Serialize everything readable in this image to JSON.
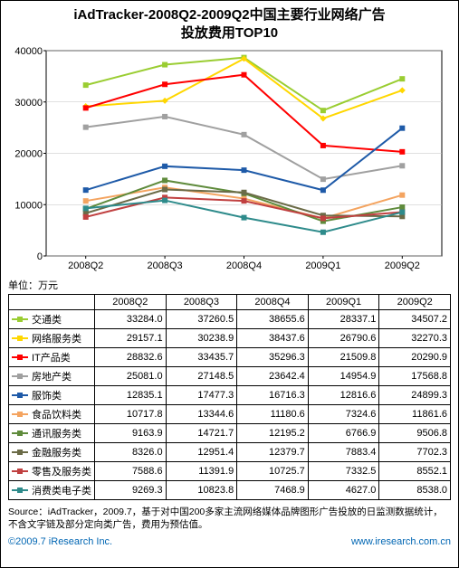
{
  "title_line1": "iAdTracker-2008Q2-2009Q2中国主要行业网络广告",
  "title_line2": "投放费用TOP10",
  "unit_label": "单位：万元",
  "chart": {
    "type": "line",
    "categories": [
      "2008Q2",
      "2008Q3",
      "2008Q4",
      "2009Q1",
      "2009Q2"
    ],
    "ylim": [
      0,
      40000
    ],
    "ytick_step": 10000,
    "background_color": "#ffffff",
    "grid_color": "#c0c0c0",
    "axis_color": "#000000",
    "label_fontsize": 11,
    "series": [
      {
        "name": "交通类",
        "color": "#9acd32",
        "marker": "rect",
        "values": [
          33284.0,
          37260.5,
          38655.6,
          28337.1,
          34507.2
        ]
      },
      {
        "name": "网络服务类",
        "color": "#ffd700",
        "marker": "diamond",
        "values": [
          29157.1,
          30238.9,
          38437.6,
          26790.6,
          32270.3
        ]
      },
      {
        "name": "IT产品类",
        "color": "#ff0000",
        "marker": "rect",
        "values": [
          28832.6,
          33435.7,
          35296.3,
          21509.8,
          20290.9
        ]
      },
      {
        "name": "房地产类",
        "color": "#a0a0a0",
        "marker": "rect",
        "values": [
          25081.0,
          27148.5,
          23642.4,
          14954.9,
          17568.8
        ]
      },
      {
        "name": "服饰类",
        "color": "#1e5aa8",
        "marker": "rect",
        "values": [
          12835.1,
          17477.3,
          16716.3,
          12816.6,
          24899.3
        ]
      },
      {
        "name": "食品饮料类",
        "color": "#f4a460",
        "marker": "rect",
        "values": [
          10717.8,
          13344.6,
          11180.6,
          7324.6,
          11861.6
        ]
      },
      {
        "name": "通讯服务类",
        "color": "#5f8b3c",
        "marker": "rect",
        "values": [
          9163.9,
          14721.7,
          12195.2,
          6766.9,
          9506.8
        ]
      },
      {
        "name": "金融服务类",
        "color": "#6b6b47",
        "marker": "rect",
        "values": [
          8326.0,
          12951.4,
          12379.7,
          7883.4,
          7702.3
        ]
      },
      {
        "name": "零售及服务类",
        "color": "#c04040",
        "marker": "rect",
        "values": [
          7588.6,
          11391.9,
          10725.7,
          7332.5,
          8552.1
        ]
      },
      {
        "name": "消费类电子类",
        "color": "#2e8b8b",
        "marker": "rect",
        "values": [
          9269.3,
          10823.8,
          7468.9,
          4627.0,
          8538.0
        ]
      }
    ]
  },
  "source_text": "Source：iAdTracker，2009.7，基于对中国200多家主流网络媒体品牌图形广告投放的日监测数据统计，不含文字链及部分定向类广告，费用为预估值。",
  "footer_left": "©2009.7 iResearch Inc.",
  "footer_right": "www.iresearch.com.cn"
}
